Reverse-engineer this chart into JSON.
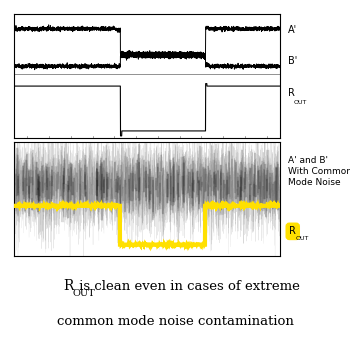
{
  "fig_width": 3.5,
  "fig_height": 3.46,
  "bg_color": "#ffffff",
  "top_panel": {
    "xlim": [
      0,
      1
    ],
    "ylim": [
      0,
      1
    ],
    "A_high": 0.88,
    "A_low": 0.68,
    "B_high": 0.66,
    "B_low": 0.58,
    "ROUT_high": 0.42,
    "ROUT_low": 0.06,
    "t1": 0.4,
    "t2": 0.72,
    "label_A": "A'",
    "label_B": "B'",
    "label_R": "R",
    "label_OUT": "OUT",
    "noise_scale": 0.008
  },
  "bottom_panel": {
    "xlim": [
      0,
      1
    ],
    "ylim": [
      0,
      1
    ],
    "noise_base": 0.62,
    "noise_amp": 0.38,
    "ROUT_high": 0.44,
    "ROUT_low": 0.1,
    "t1": 0.4,
    "t2": 0.72,
    "yellow": "#FFE000",
    "label_noise": "A' and B'\nWith Common\nMode Noise",
    "label_R": "R",
    "label_OUT": "OUT"
  },
  "caption_R": "R",
  "caption_OUT": "OUT",
  "caption_rest": " is clean even in cases of extreme",
  "caption_line2": "common mode noise contamination",
  "label_fontsize": 7.0,
  "caption_fontsize": 9.5
}
